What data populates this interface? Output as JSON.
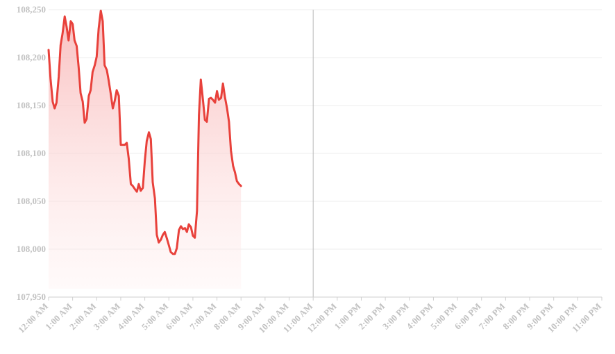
{
  "chart_data": {
    "type": "area",
    "title": "",
    "xlabel": "",
    "ylabel": "",
    "ylim": [
      107950,
      108250
    ],
    "yticks": [
      107950,
      108000,
      108050,
      108100,
      108150,
      108200,
      108250
    ],
    "ytick_labels": [
      "107,950",
      "108,000",
      "108,050",
      "108,100",
      "108,150",
      "108,200",
      "108,250"
    ],
    "xlim": [
      0,
      23
    ],
    "xticks": [
      0,
      1,
      2,
      3,
      4,
      5,
      6,
      7,
      8,
      9,
      10,
      11,
      12,
      13,
      14,
      15,
      16,
      17,
      18,
      19,
      20,
      21,
      22,
      23
    ],
    "xtick_labels": [
      "12:00 AM",
      "1:00 AM",
      "2:00 AM",
      "3:00 AM",
      "4:00 AM",
      "5:00 AM",
      "6:00 AM",
      "7:00 AM",
      "8:00 AM",
      "9:00 AM",
      "10:00 AM",
      "11:00 AM",
      "12:00 PM",
      "1:00 PM",
      "2:00 PM",
      "3:00 PM",
      "4:00 PM",
      "5:00 PM",
      "6:00 PM",
      "7:00 PM",
      "8:00 PM",
      "9:00 PM",
      "10:00 PM",
      "11:00 PM"
    ],
    "marker_line_x": 11,
    "grid": true,
    "series_color": "#e8413b",
    "fill_color_top": "#f8b4b4",
    "fill_color_bottom": "#fff0f0",
    "series": [
      {
        "values": [
          [
            0.0,
            108208
          ],
          [
            0.08,
            108178
          ],
          [
            0.17,
            108154
          ],
          [
            0.25,
            108147
          ],
          [
            0.33,
            108153
          ],
          [
            0.42,
            108180
          ],
          [
            0.5,
            108213
          ],
          [
            0.58,
            108225
          ],
          [
            0.67,
            108243
          ],
          [
            0.75,
            108232
          ],
          [
            0.83,
            108218
          ],
          [
            0.92,
            108238
          ],
          [
            1.0,
            108235
          ],
          [
            1.08,
            108218
          ],
          [
            1.17,
            108212
          ],
          [
            1.25,
            108190
          ],
          [
            1.33,
            108163
          ],
          [
            1.42,
            108154
          ],
          [
            1.5,
            108132
          ],
          [
            1.58,
            108136
          ],
          [
            1.67,
            108160
          ],
          [
            1.75,
            108166
          ],
          [
            1.83,
            108185
          ],
          [
            1.92,
            108192
          ],
          [
            2.0,
            108201
          ],
          [
            2.08,
            108230
          ],
          [
            2.17,
            108249
          ],
          [
            2.25,
            108238
          ],
          [
            2.33,
            108192
          ],
          [
            2.42,
            108187
          ],
          [
            2.5,
            108176
          ],
          [
            2.58,
            108163
          ],
          [
            2.67,
            108147
          ],
          [
            2.75,
            108155
          ],
          [
            2.83,
            108166
          ],
          [
            2.92,
            108160
          ],
          [
            3.0,
            108109
          ],
          [
            3.08,
            108109
          ],
          [
            3.17,
            108109
          ],
          [
            3.25,
            108111
          ],
          [
            3.33,
            108095
          ],
          [
            3.42,
            108068
          ],
          [
            3.5,
            108066
          ],
          [
            3.58,
            108063
          ],
          [
            3.67,
            108060
          ],
          [
            3.75,
            108068
          ],
          [
            3.83,
            108061
          ],
          [
            3.92,
            108064
          ],
          [
            4.0,
            108092
          ],
          [
            4.08,
            108113
          ],
          [
            4.17,
            108122
          ],
          [
            4.25,
            108115
          ],
          [
            4.33,
            108070
          ],
          [
            4.42,
            108053
          ],
          [
            4.5,
            108015
          ],
          [
            4.58,
            108007
          ],
          [
            4.67,
            108010
          ],
          [
            4.75,
            108015
          ],
          [
            4.83,
            108018
          ],
          [
            4.92,
            108011
          ],
          [
            5.0,
            108004
          ],
          [
            5.08,
            107997
          ],
          [
            5.17,
            107995
          ],
          [
            5.25,
            107995
          ],
          [
            5.33,
            108001
          ],
          [
            5.42,
            108020
          ],
          [
            5.5,
            108024
          ],
          [
            5.58,
            108021
          ],
          [
            5.67,
            108022
          ],
          [
            5.75,
            108018
          ],
          [
            5.83,
            108026
          ],
          [
            5.92,
            108023
          ],
          [
            6.0,
            108014
          ],
          [
            6.08,
            108012
          ],
          [
            6.17,
            108040
          ],
          [
            6.25,
            108140
          ],
          [
            6.33,
            108177
          ],
          [
            6.42,
            108155
          ],
          [
            6.5,
            108135
          ],
          [
            6.58,
            108133
          ],
          [
            6.67,
            108157
          ],
          [
            6.75,
            108158
          ],
          [
            6.83,
            108156
          ],
          [
            6.92,
            108153
          ],
          [
            7.0,
            108165
          ],
          [
            7.08,
            108156
          ],
          [
            7.17,
            108158
          ],
          [
            7.25,
            108173
          ],
          [
            7.33,
            108159
          ],
          [
            7.42,
            108147
          ],
          [
            7.5,
            108133
          ],
          [
            7.58,
            108103
          ],
          [
            7.67,
            108087
          ],
          [
            7.75,
            108080
          ],
          [
            7.83,
            108071
          ],
          [
            7.92,
            108068
          ],
          [
            8.0,
            108066
          ]
        ]
      }
    ]
  }
}
